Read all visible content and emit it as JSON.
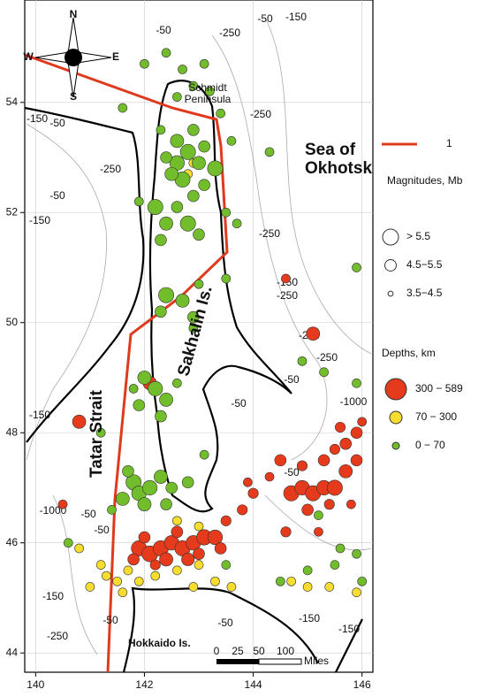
{
  "chart_data": {
    "type": "map",
    "xlim": [
      139.8,
      146.2
    ],
    "ylim": [
      43.65,
      55.86
    ],
    "xticks": [
      140,
      142,
      144,
      146
    ],
    "yticks": [
      44,
      46,
      48,
      50,
      52,
      54
    ],
    "grid": true,
    "labels": {
      "sea": "Sea of\nOkhotsk",
      "strait": "Tatar Strait",
      "island": "Sakhalin Is.",
      "hokkaido": "Hokkaido Is.",
      "peninsula": "Schmidt\nPeninsula"
    },
    "compass": [
      "N",
      "S",
      "E",
      "W"
    ],
    "scale_bar": {
      "ticks": [
        "0",
        "25",
        "50",
        "100"
      ],
      "unit": "Miles"
    },
    "contour_labels": [
      "-50",
      "-50",
      "-150",
      "-250",
      "-150",
      "-150",
      "-50",
      "-50",
      "-250",
      "-250",
      "-250",
      "-150",
      "-250",
      "-250",
      "-250",
      "-50",
      "-50",
      "-1000",
      "-50",
      "-150",
      "-1000",
      "-50",
      "-50",
      "-150",
      "-250",
      "-50",
      "-50",
      "-150",
      "-150"
    ],
    "legend": {
      "line": {
        "label": "1",
        "color": "#e03a1e"
      },
      "magnitude_title": "Magnitudes, Mb",
      "magnitudes": [
        {
          "label": "> 5.5",
          "mag": 5.7
        },
        {
          "label": "4.5−5.5",
          "mag": 5.0
        },
        {
          "label": "3.5−4.5",
          "mag": 4.0
        }
      ],
      "depth_title": "Depths, km"
    },
    "depths": [
      {
        "label": "300 − 589",
        "color": "#e53a1c",
        "events": [
          [
            140.8,
            48.2,
            5.3
          ],
          [
            145.1,
            49.8,
            5.3
          ],
          [
            142.1,
            48.9,
            5.3
          ],
          [
            144.6,
            50.8,
            4.6
          ],
          [
            144.5,
            47.5,
            5.0
          ],
          [
            140.5,
            46.7,
            4.6
          ],
          [
            141.9,
            45.9,
            5.6
          ],
          [
            142.1,
            45.8,
            5.7
          ],
          [
            142.3,
            45.9,
            5.6
          ],
          [
            142.5,
            46.0,
            5.5
          ],
          [
            142.7,
            45.9,
            5.6
          ],
          [
            142.9,
            46.0,
            5.5
          ],
          [
            143.1,
            46.1,
            5.6
          ],
          [
            143.3,
            46.1,
            5.5
          ],
          [
            142.0,
            46.1,
            5.0
          ],
          [
            142.4,
            45.7,
            5.3
          ],
          [
            142.8,
            45.7,
            5.2
          ],
          [
            143.0,
            45.8,
            5.0
          ],
          [
            143.4,
            45.9,
            5.0
          ],
          [
            142.6,
            46.2,
            5.0
          ],
          [
            141.8,
            45.7,
            5.0
          ],
          [
            142.2,
            45.6,
            4.8
          ],
          [
            143.5,
            46.4,
            4.8
          ],
          [
            143.8,
            46.6,
            4.8
          ],
          [
            144.0,
            46.9,
            4.8
          ],
          [
            143.9,
            47.1,
            4.6
          ],
          [
            144.3,
            47.2,
            4.6
          ],
          [
            144.7,
            46.9,
            5.6
          ],
          [
            144.9,
            47.0,
            5.5
          ],
          [
            145.1,
            46.9,
            5.6
          ],
          [
            145.3,
            47.0,
            5.5
          ],
          [
            145.5,
            47.0,
            5.6
          ],
          [
            145.7,
            47.3,
            5.3
          ],
          [
            145.9,
            47.5,
            5.0
          ],
          [
            145.7,
            47.8,
            5.0
          ],
          [
            145.9,
            48.0,
            5.0
          ],
          [
            145.6,
            48.1,
            4.8
          ],
          [
            145.3,
            47.5,
            5.0
          ],
          [
            144.9,
            47.4,
            4.8
          ],
          [
            145.0,
            46.6,
            5.0
          ],
          [
            145.4,
            46.7,
            4.8
          ],
          [
            145.8,
            46.7,
            4.6
          ],
          [
            145.5,
            47.7,
            4.8
          ],
          [
            146.0,
            48.2,
            4.6
          ],
          [
            144.6,
            46.2,
            4.8
          ],
          [
            145.2,
            46.2,
            4.6
          ]
        ]
      },
      {
        "label": "70 − 300",
        "color": "#f6dd2e",
        "events": [
          [
            141.0,
            45.2,
            4.6
          ],
          [
            141.3,
            45.4,
            4.6
          ],
          [
            141.5,
            45.3,
            4.6
          ],
          [
            141.7,
            45.5,
            4.6
          ],
          [
            141.9,
            45.3,
            4.6
          ],
          [
            141.2,
            45.6,
            4.6
          ],
          [
            141.6,
            45.1,
            4.6
          ],
          [
            140.8,
            45.9,
            4.6
          ],
          [
            142.2,
            45.4,
            4.6
          ],
          [
            142.6,
            45.5,
            4.6
          ],
          [
            143.0,
            45.6,
            4.6
          ],
          [
            142.9,
            45.2,
            4.6
          ],
          [
            143.3,
            45.3,
            4.6
          ],
          [
            143.6,
            45.2,
            4.6
          ],
          [
            144.7,
            45.3,
            4.6
          ],
          [
            145.0,
            45.2,
            4.6
          ],
          [
            145.4,
            45.2,
            4.6
          ],
          [
            145.9,
            45.1,
            4.6
          ],
          [
            142.9,
            52.9,
            4.6
          ],
          [
            142.8,
            52.7,
            4.6
          ],
          [
            142.6,
            46.4,
            4.6
          ],
          [
            143.0,
            46.3,
            4.6
          ]
        ]
      },
      {
        "label": "0 − 70",
        "color": "#71bd2b",
        "events": [
          [
            142.0,
            54.7,
            4.6
          ],
          [
            142.4,
            54.9,
            4.6
          ],
          [
            142.7,
            54.6,
            4.6
          ],
          [
            143.1,
            54.7,
            4.6
          ],
          [
            142.9,
            54.3,
            4.6
          ],
          [
            143.2,
            54.2,
            4.6
          ],
          [
            142.6,
            54.1,
            4.6
          ],
          [
            141.6,
            53.9,
            4.6
          ],
          [
            142.3,
            53.5,
            4.6
          ],
          [
            143.4,
            53.8,
            4.6
          ],
          [
            143.6,
            53.3,
            4.6
          ],
          [
            144.3,
            53.1,
            4.6
          ],
          [
            142.6,
            53.3,
            5.3
          ],
          [
            142.8,
            53.1,
            5.6
          ],
          [
            142.6,
            52.9,
            5.5
          ],
          [
            143.0,
            52.9,
            5.3
          ],
          [
            142.7,
            52.6,
            5.6
          ],
          [
            142.5,
            52.7,
            5.3
          ],
          [
            143.1,
            52.5,
            5.0
          ],
          [
            142.9,
            52.3,
            5.0
          ],
          [
            143.3,
            52.8,
            5.6
          ],
          [
            142.4,
            53.0,
            5.0
          ],
          [
            142.9,
            53.5,
            5.0
          ],
          [
            143.1,
            53.2,
            5.0
          ],
          [
            142.2,
            52.1,
            5.6
          ],
          [
            142.4,
            51.8,
            5.3
          ],
          [
            142.8,
            51.8,
            5.6
          ],
          [
            142.3,
            51.5,
            5.0
          ],
          [
            143.0,
            51.6,
            5.0
          ],
          [
            142.6,
            52.1,
            5.0
          ],
          [
            141.9,
            52.2,
            4.6
          ],
          [
            143.5,
            52.0,
            4.6
          ],
          [
            143.7,
            51.8,
            4.6
          ],
          [
            142.4,
            50.5,
            5.6
          ],
          [
            142.7,
            50.4,
            5.3
          ],
          [
            142.3,
            50.2,
            5.0
          ],
          [
            142.9,
            50.1,
            5.0
          ],
          [
            143.0,
            50.7,
            4.6
          ],
          [
            143.5,
            50.8,
            4.6
          ],
          [
            142.9,
            49.9,
            4.6
          ],
          [
            142.0,
            49.0,
            5.3
          ],
          [
            142.2,
            48.8,
            5.5
          ],
          [
            142.4,
            48.6,
            5.3
          ],
          [
            141.9,
            48.5,
            5.0
          ],
          [
            142.3,
            48.3,
            5.0
          ],
          [
            142.6,
            48.9,
            4.6
          ],
          [
            141.8,
            48.8,
            4.6
          ],
          [
            141.2,
            48.0,
            4.6
          ],
          [
            141.8,
            47.1,
            5.6
          ],
          [
            141.9,
            46.9,
            5.5
          ],
          [
            142.1,
            47.0,
            5.5
          ],
          [
            142.3,
            47.2,
            5.3
          ],
          [
            142.5,
            47.0,
            5.0
          ],
          [
            141.6,
            46.8,
            5.3
          ],
          [
            142.0,
            46.7,
            5.3
          ],
          [
            142.4,
            46.7,
            5.0
          ],
          [
            142.8,
            47.1,
            5.0
          ],
          [
            141.4,
            46.6,
            4.6
          ],
          [
            141.7,
            47.3,
            5.0
          ],
          [
            144.9,
            49.3,
            4.6
          ],
          [
            145.3,
            49.1,
            4.6
          ],
          [
            145.9,
            48.9,
            4.6
          ],
          [
            145.9,
            51.0,
            4.6
          ],
          [
            145.2,
            46.5,
            4.6
          ],
          [
            145.6,
            45.9,
            4.6
          ],
          [
            145.9,
            45.8,
            4.6
          ],
          [
            145.5,
            45.6,
            4.6
          ],
          [
            145.0,
            45.5,
            4.6
          ],
          [
            143.5,
            45.6,
            4.6
          ],
          [
            144.5,
            45.3,
            4.6
          ],
          [
            146.0,
            45.3,
            4.6
          ],
          [
            140.6,
            46.0,
            4.6
          ],
          [
            143.1,
            47.6,
            4.6
          ]
        ]
      }
    ]
  }
}
